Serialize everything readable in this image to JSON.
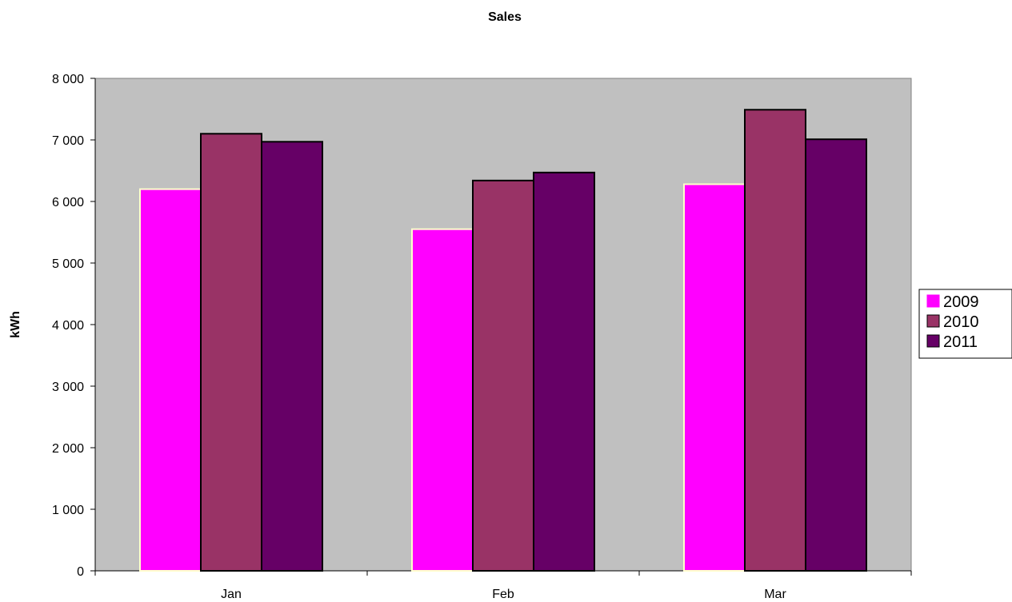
{
  "chart_data": {
    "type": "bar",
    "title": "Sales",
    "xlabel": "",
    "ylabel": "kWh",
    "categories": [
      "Jan",
      "Feb",
      "Mar"
    ],
    "series": [
      {
        "name": "2009",
        "values": [
          6200,
          5550,
          6280
        ],
        "color": "#ff00ff",
        "edge": "#ffffcc"
      },
      {
        "name": "2010",
        "values": [
          7100,
          6340,
          7490
        ],
        "color": "#993366",
        "edge": "#000000"
      },
      {
        "name": "2011",
        "values": [
          6970,
          6470,
          7010
        ],
        "color": "#660066",
        "edge": "#000000"
      }
    ],
    "ylim": [
      0,
      8000
    ],
    "yticks": [
      0,
      1000,
      2000,
      3000,
      4000,
      5000,
      6000,
      7000,
      8000
    ],
    "ytick_labels": [
      "0",
      "1 000",
      "2 000",
      "3 000",
      "4 000",
      "5 000",
      "6 000",
      "7 000",
      "8 000"
    ],
    "grid": false,
    "legend_position": "right",
    "plot_background": "#c0c0c0"
  }
}
